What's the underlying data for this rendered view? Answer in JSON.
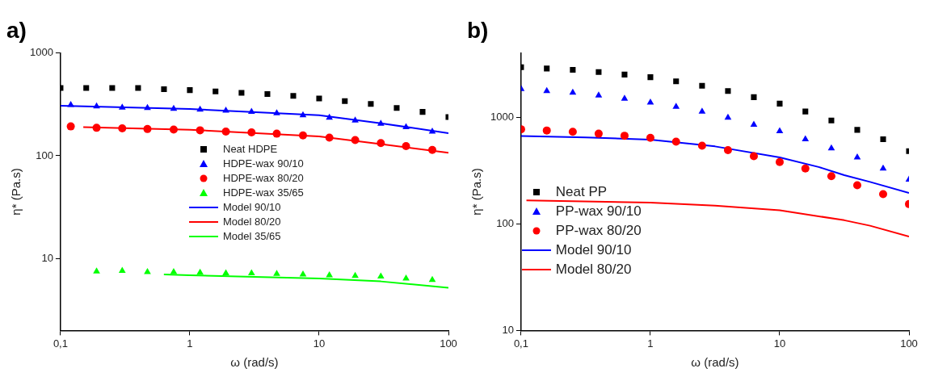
{
  "chart_data": [
    {
      "type": "scatter",
      "title": "a)",
      "xlabel": "ω (rad/s)",
      "ylabel": "η* (Pa.s)",
      "log": "xy",
      "grid": false,
      "legend": "center",
      "xlim": [
        0.1,
        100
      ],
      "xticks": [
        {
          "value": 0.1,
          "label": "0,1"
        },
        1,
        10,
        100
      ],
      "ylim": [
        2,
        1000
      ],
      "yticks": [
        10,
        100,
        1000
      ],
      "series": [
        {
          "name": "Neat HDPE",
          "type": "scatter",
          "marker": "square",
          "color": "#000000",
          "x": [
            0.1,
            0.158,
            0.251,
            0.398,
            0.631,
            1,
            1.58,
            2.51,
            3.98,
            6.31,
            10,
            15.8,
            25.1,
            39.8,
            63.1,
            100
          ],
          "values": [
            457,
            457,
            457,
            457,
            444,
            435,
            423,
            410,
            398,
            382,
            361,
            340,
            319,
            292,
            267,
            238
          ]
        },
        {
          "name": "HDPE-wax 90/10",
          "type": "scatter",
          "marker": "triangle",
          "color": "#0000ff",
          "x": [
            0.12,
            0.19,
            0.3,
            0.47,
            0.75,
            1.2,
            1.9,
            3,
            4.7,
            7.5,
            12,
            19,
            30,
            47,
            75
          ],
          "values": [
            312,
            303,
            295,
            292,
            287,
            281,
            275,
            268,
            259,
            248,
            235,
            220,
            205,
            190,
            172
          ]
        },
        {
          "name": "HDPE-wax 80/20",
          "type": "scatter",
          "marker": "circle",
          "color": "#ff0000",
          "x": [
            0.12,
            0.19,
            0.3,
            0.47,
            0.75,
            1.2,
            1.9,
            3,
            4.7,
            7.5,
            12,
            19,
            30,
            47,
            75
          ],
          "values": [
            193,
            187,
            185,
            182,
            180,
            177,
            172,
            169,
            164,
            158,
            150,
            142,
            133,
            124,
            114
          ]
        },
        {
          "name": "HDPE-wax 35/65",
          "type": "scatter",
          "marker": "triangle",
          "color": "#00ff00",
          "x": [
            0.19,
            0.3,
            0.47,
            0.75,
            1.2,
            1.9,
            3,
            4.7,
            7.5,
            12,
            19,
            30,
            47,
            75
          ],
          "values": [
            7.5,
            7.6,
            7.4,
            7.4,
            7.3,
            7.2,
            7.2,
            7.1,
            7.0,
            6.9,
            6.8,
            6.7,
            6.4,
            6.2
          ]
        },
        {
          "name": "Model 90/10",
          "type": "line",
          "marker": "none",
          "line_style": "solid",
          "color": "#0000ff",
          "x": [
            0.1,
            1,
            10,
            30,
            100
          ],
          "values": [
            306,
            285,
            248,
            207,
            166
          ]
        },
        {
          "name": "Model 80/20",
          "type": "line",
          "marker": "none",
          "line_style": "solid",
          "color": "#ff0000",
          "x": [
            0.15,
            1,
            10,
            30,
            100
          ],
          "values": [
            190,
            179,
            154,
            130,
            107
          ]
        },
        {
          "name": "Model 35/65",
          "type": "line",
          "marker": "none",
          "line_style": "solid",
          "color": "#00ff00",
          "x": [
            0.63,
            1,
            10,
            30,
            100
          ],
          "values": [
            7.0,
            6.9,
            6.4,
            6.0,
            5.2
          ]
        }
      ]
    },
    {
      "type": "scatter",
      "title": "b)",
      "xlabel": "ω (rad/s)",
      "ylabel": "η* (Pa.s)",
      "log": "xy",
      "grid": false,
      "legend": "bottom left",
      "xlim": [
        0.1,
        100
      ],
      "xticks": [
        {
          "value": 0.1,
          "label": "0,1"
        },
        1,
        10,
        100
      ],
      "ylim": [
        10,
        4000
      ],
      "yticks": [
        10,
        100,
        1000
      ],
      "series": [
        {
          "name": "Neat PP",
          "type": "scatter",
          "marker": "square",
          "color": "#000000",
          "x": [
            0.1,
            0.158,
            0.251,
            0.398,
            0.631,
            1,
            1.58,
            2.51,
            3.98,
            6.31,
            10,
            15.8,
            25.1,
            39.8,
            63.1,
            100
          ],
          "values": [
            2940,
            2860,
            2780,
            2650,
            2510,
            2370,
            2170,
            1970,
            1760,
            1540,
            1340,
            1130,
            930,
            760,
            620,
            480
          ]
        },
        {
          "name": "PP-wax 90/10",
          "type": "scatter",
          "marker": "triangle",
          "color": "#0000ff",
          "x": [
            0.1,
            0.158,
            0.251,
            0.398,
            0.631,
            1,
            1.58,
            2.51,
            3.98,
            6.31,
            10,
            15.8,
            25.1,
            39.8,
            63.1,
            100
          ],
          "values": [
            1840,
            1760,
            1700,
            1600,
            1490,
            1370,
            1250,
            1130,
            990,
            850,
            740,
            620,
            510,
            420,
            330,
            260
          ]
        },
        {
          "name": "PP-wax 80/20",
          "type": "scatter",
          "marker": "circle",
          "color": "#ff0000",
          "x": [
            0.1,
            0.158,
            0.251,
            0.398,
            0.631,
            1,
            1.58,
            2.51,
            3.98,
            6.31,
            10,
            15.8,
            25.1,
            39.8,
            63.1,
            100
          ],
          "values": [
            770,
            750,
            730,
            700,
            670,
            640,
            590,
            540,
            490,
            430,
            380,
            330,
            280,
            230,
            190,
            153
          ]
        },
        {
          "name": "Model 90/10",
          "type": "line",
          "marker": "none",
          "line_style": "solid",
          "color": "#0000ff",
          "x": [
            0.1,
            0.316,
            1,
            3.16,
            10,
            20,
            31.6,
            50,
            100
          ],
          "values": [
            665,
            646,
            616,
            532,
            420,
            341,
            286,
            247,
            195
          ]
        },
        {
          "name": "Model 80/20",
          "type": "line",
          "marker": "none",
          "line_style": "solid",
          "color": "#ff0000",
          "x": [
            0.11,
            1,
            3.16,
            10,
            31.6,
            50,
            100
          ],
          "values": [
            166,
            158,
            148,
            134,
            108,
            96,
            76
          ]
        }
      ]
    }
  ]
}
